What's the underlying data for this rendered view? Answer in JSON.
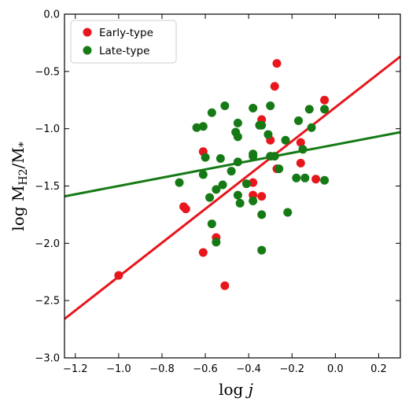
{
  "chart_data": {
    "type": "scatter",
    "xlabel": "log j",
    "ylabel": "log M_H2/M_*",
    "xlim": [
      -1.25,
      0.3
    ],
    "ylim": [
      -3.0,
      0.0
    ],
    "xticks": [
      -1.2,
      -1.0,
      -0.8,
      -0.6,
      -0.4,
      -0.2,
      0.0,
      0.2
    ],
    "xtick_labels": [
      "−1.2",
      "−1.0",
      "−0.8",
      "−0.6",
      "−0.4",
      "−0.2",
      "0.0",
      "0.2"
    ],
    "yticks": [
      -3.0,
      -2.5,
      -2.0,
      -1.5,
      -1.0,
      -0.5,
      0.0
    ],
    "ytick_labels": [
      "−3.0",
      "−2.5",
      "−2.0",
      "−1.5",
      "−1.0",
      "−0.5",
      "0.0"
    ],
    "legend_position": "top-left",
    "grid": false,
    "series": [
      {
        "name": "Early-type",
        "color": "#e8161c",
        "points": [
          [
            -1.0,
            -2.28
          ],
          [
            -0.7,
            -1.68
          ],
          [
            -0.69,
            -1.7
          ],
          [
            -0.61,
            -1.2
          ],
          [
            -0.61,
            -2.08
          ],
          [
            -0.55,
            -1.95
          ],
          [
            -0.51,
            -2.37
          ],
          [
            -0.38,
            -1.47
          ],
          [
            -0.38,
            -1.58
          ],
          [
            -0.34,
            -1.59
          ],
          [
            -0.34,
            -0.92
          ],
          [
            -0.3,
            -1.1
          ],
          [
            -0.28,
            -0.63
          ],
          [
            -0.27,
            -0.43
          ],
          [
            -0.27,
            -1.35
          ],
          [
            -0.16,
            -1.3
          ],
          [
            -0.16,
            -1.12
          ],
          [
            -0.09,
            -1.44
          ],
          [
            -0.05,
            -0.75
          ]
        ],
        "fit": {
          "x": [
            -1.25,
            0.3
          ],
          "y": [
            -2.66,
            -0.37
          ]
        }
      },
      {
        "name": "Late-type",
        "color": "#157a15",
        "points": [
          [
            -0.72,
            -1.47
          ],
          [
            -0.64,
            -0.99
          ],
          [
            -0.61,
            -0.98
          ],
          [
            -0.6,
            -1.25
          ],
          [
            -0.61,
            -1.4
          ],
          [
            -0.58,
            -1.6
          ],
          [
            -0.57,
            -0.86
          ],
          [
            -0.57,
            -1.83
          ],
          [
            -0.55,
            -1.99
          ],
          [
            -0.55,
            -1.53
          ],
          [
            -0.53,
            -1.26
          ],
          [
            -0.52,
            -1.49
          ],
          [
            -0.51,
            -0.8
          ],
          [
            -0.48,
            -1.37
          ],
          [
            -0.46,
            -1.03
          ],
          [
            -0.45,
            -0.95
          ],
          [
            -0.45,
            -1.07
          ],
          [
            -0.45,
            -1.29
          ],
          [
            -0.45,
            -1.58
          ],
          [
            -0.44,
            -1.65
          ],
          [
            -0.41,
            -1.48
          ],
          [
            -0.38,
            -0.82
          ],
          [
            -0.38,
            -1.22
          ],
          [
            -0.38,
            -1.24
          ],
          [
            -0.38,
            -1.63
          ],
          [
            -0.35,
            -0.97
          ],
          [
            -0.34,
            -0.97
          ],
          [
            -0.34,
            -1.75
          ],
          [
            -0.34,
            -2.06
          ],
          [
            -0.31,
            -1.05
          ],
          [
            -0.3,
            -0.8
          ],
          [
            -0.3,
            -1.24
          ],
          [
            -0.28,
            -1.24
          ],
          [
            -0.26,
            -1.35
          ],
          [
            -0.23,
            -1.1
          ],
          [
            -0.22,
            -1.73
          ],
          [
            -0.18,
            -1.43
          ],
          [
            -0.17,
            -0.93
          ],
          [
            -0.15,
            -1.18
          ],
          [
            -0.14,
            -1.43
          ],
          [
            -0.12,
            -0.83
          ],
          [
            -0.11,
            -0.99
          ],
          [
            -0.05,
            -0.83
          ],
          [
            -0.05,
            -1.45
          ]
        ],
        "fit": {
          "x": [
            -1.25,
            0.3
          ],
          "y": [
            -1.59,
            -1.03
          ]
        }
      }
    ]
  }
}
